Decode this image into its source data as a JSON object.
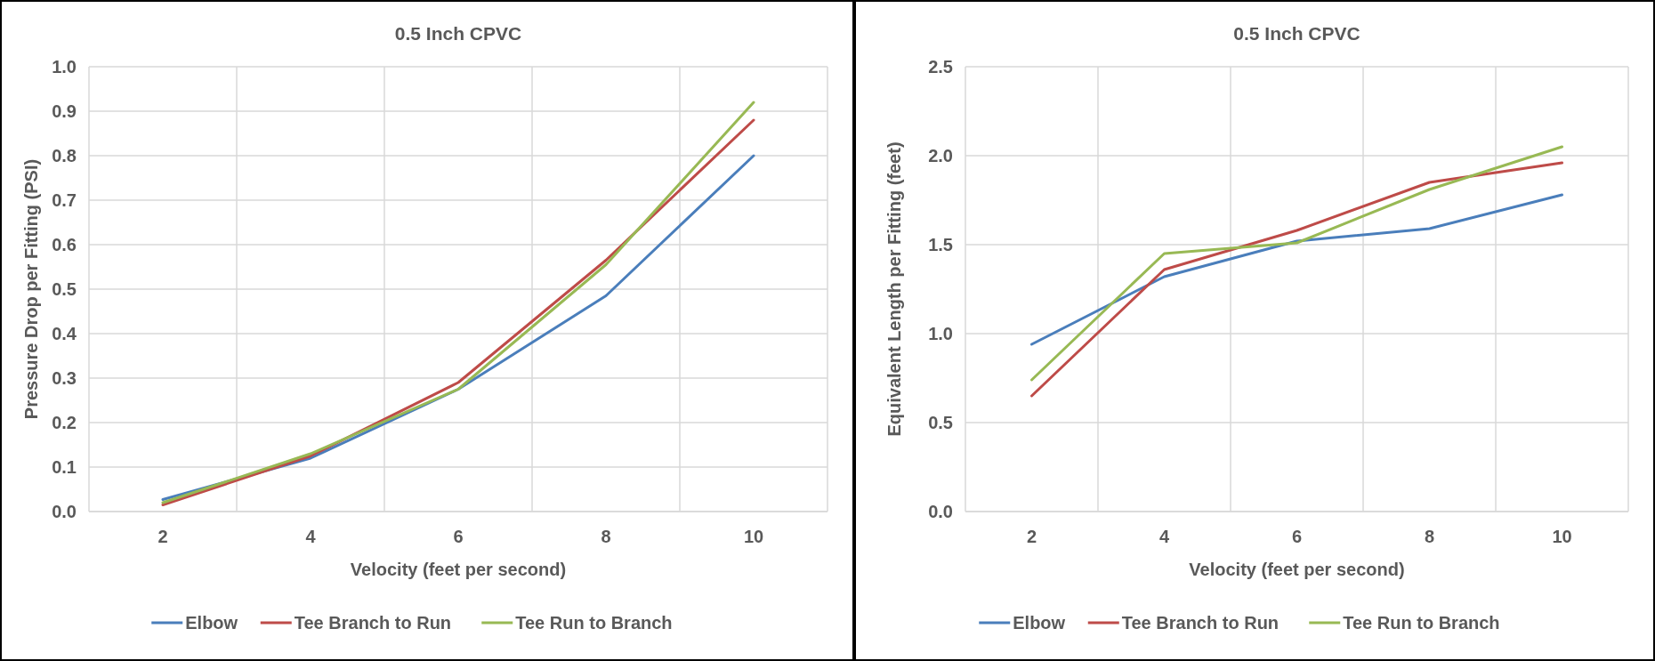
{
  "chart_data": [
    {
      "type": "line",
      "title": "0.5 Inch CPVC",
      "xlabel": "Velocity (feet per second)",
      "ylabel": "Pressure Drop per Fitting (PSI)",
      "categories": [
        "2",
        "4",
        "6",
        "8",
        "10"
      ],
      "series": [
        {
          "name": "Elbow",
          "color": "#4a7ebb",
          "values": [
            0.027,
            0.12,
            0.275,
            0.485,
            0.8
          ]
        },
        {
          "name": "Tee Branch to Run",
          "color": "#be4b48",
          "values": [
            0.015,
            0.125,
            0.29,
            0.565,
            0.88
          ]
        },
        {
          "name": "Tee Run to Branch",
          "color": "#98b954",
          "values": [
            0.02,
            0.13,
            0.275,
            0.555,
            0.92
          ]
        }
      ],
      "ylim": [
        0,
        1
      ],
      "yticks": [
        {
          "value": 0,
          "label": "0.0"
        },
        0.1,
        0.2,
        0.3,
        0.4,
        0.5,
        0.6,
        0.7,
        0.8,
        0.9,
        {
          "value": 1,
          "label": "1.0"
        }
      ],
      "grid": true,
      "legend": "bottom",
      "marker": "none",
      "line_style": "solid"
    },
    {
      "type": "line",
      "title": "0.5 Inch CPVC",
      "xlabel": "Velocity (feet per second)",
      "ylabel": "Equivalent Length per Fitting (feet)",
      "categories": [
        "2",
        "4",
        "6",
        "8",
        "10"
      ],
      "series": [
        {
          "name": "Elbow",
          "color": "#4a7ebb",
          "values": [
            0.94,
            1.32,
            1.52,
            1.59,
            1.78
          ]
        },
        {
          "name": "Tee Branch to Run",
          "color": "#be4b48",
          "values": [
            0.65,
            1.36,
            1.58,
            1.85,
            1.96
          ]
        },
        {
          "name": "Tee Run to Branch",
          "color": "#98b954",
          "values": [
            0.74,
            1.45,
            1.51,
            1.81,
            2.05
          ]
        }
      ],
      "ylim": [
        0,
        2.5
      ],
      "yticks": [
        {
          "value": 0,
          "label": "0.0"
        },
        0.5,
        {
          "value": 1,
          "label": "1.0"
        },
        1.5,
        {
          "value": 2,
          "label": "2.0"
        },
        2.5
      ],
      "grid": true,
      "legend": "bottom",
      "marker": "none",
      "line_style": "solid"
    }
  ]
}
